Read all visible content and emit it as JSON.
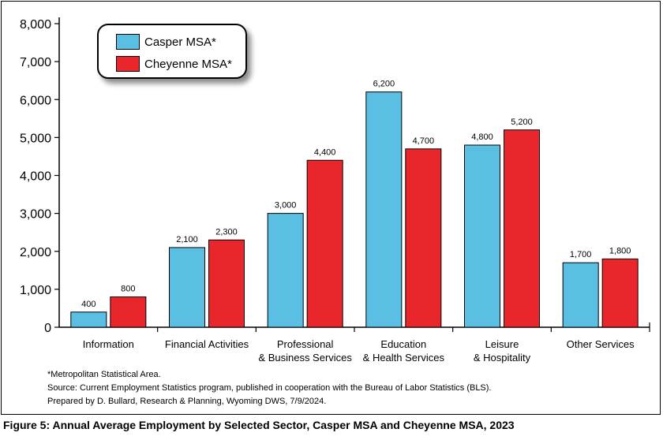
{
  "chart_data": {
    "type": "bar",
    "categories": [
      [
        "Information"
      ],
      [
        "Financial Activities"
      ],
      [
        "Professional",
        "& Business Services"
      ],
      [
        "Education",
        "& Health Services"
      ],
      [
        "Leisure",
        "& Hospitality"
      ],
      [
        "Other Services"
      ]
    ],
    "series": [
      {
        "name": "Casper MSA*",
        "color": "#5bbfe3",
        "values": [
          400,
          2100,
          3000,
          6200,
          4800,
          1700
        ],
        "labels": [
          "400",
          "2,100",
          "3,000",
          "6,200",
          "4,800",
          "1,700"
        ]
      },
      {
        "name": "Cheyenne MSA*",
        "color": "#e8262c",
        "values": [
          800,
          2300,
          4400,
          4700,
          5200,
          1800
        ],
        "labels": [
          "800",
          "2,300",
          "4,400",
          "4,700",
          "5,200",
          "1,800"
        ]
      }
    ],
    "ylim": [
      0,
      8000
    ],
    "yticks": [
      0,
      1000,
      2000,
      3000,
      4000,
      5000,
      6000,
      7000,
      8000
    ],
    "ytick_labels": [
      "0",
      "1,000",
      "2,000",
      "3,000",
      "4,000",
      "5,000",
      "6,000",
      "7,000",
      "8,000"
    ],
    "grid": false,
    "legend": "top-left"
  },
  "legend": {
    "casper_label": "Casper MSA*",
    "cheyenne_label": "Cheyenne MSA*"
  },
  "notes": {
    "footnote": "*Metropolitan Statistical Area.",
    "source": "Source: Current Employment Statistics program, published in cooperation with the Bureau of Labor Statistics (BLS).",
    "prepared": "Prepared by D. Bullard, Research & Planning, Wyoming DWS, 7/9/2024."
  },
  "caption": "Figure 5: Annual Average Employment by Selected Sector, Casper MSA and Cheyenne MSA, 2023"
}
